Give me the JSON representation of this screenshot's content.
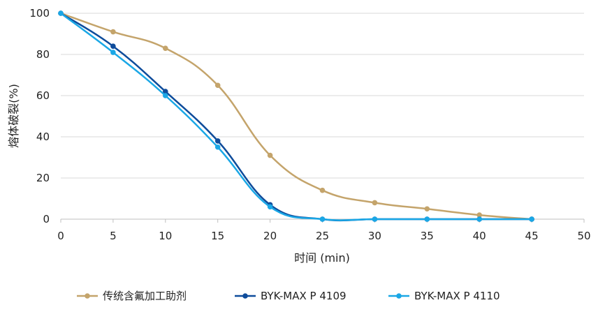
{
  "chart_data": {
    "type": "line",
    "title": "",
    "xlabel": "时间 (min)",
    "ylabel": "熔体破裂(%)",
    "xlim": [
      0,
      50
    ],
    "ylim": [
      0,
      100
    ],
    "xticks": [
      0,
      5,
      10,
      15,
      20,
      25,
      30,
      35,
      40,
      45,
      50
    ],
    "yticks": [
      0,
      20,
      40,
      60,
      80,
      100
    ],
    "grid": "horizontal",
    "legend_position": "bottom",
    "smooth": true,
    "series": [
      {
        "name": "传统含氟加工助剂",
        "color": "#C4A46B",
        "x": [
          0,
          5,
          10,
          15,
          20,
          25,
          30,
          35,
          40,
          45
        ],
        "y": [
          100,
          91,
          83,
          65,
          31,
          14,
          8,
          5,
          2,
          0
        ]
      },
      {
        "name": "BYK-MAX P 4109",
        "color": "#0E4C9B",
        "x": [
          0,
          5,
          10,
          15,
          20,
          25,
          30,
          35,
          40,
          45
        ],
        "y": [
          100,
          84,
          62,
          38,
          7,
          0,
          0,
          0,
          0,
          0
        ]
      },
      {
        "name": "BYK-MAX P 4110",
        "color": "#1AA7E6",
        "x": [
          0,
          5,
          10,
          15,
          20,
          25,
          30,
          35,
          40,
          45
        ],
        "y": [
          100,
          81,
          60,
          35,
          6,
          0,
          0,
          0,
          0,
          0
        ]
      }
    ]
  }
}
